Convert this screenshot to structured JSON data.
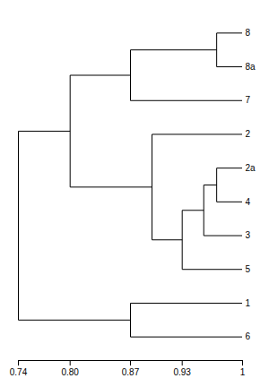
{
  "chart_data": {
    "type": "dendrogram",
    "categories": [
      "8",
      "8a",
      "7",
      "2",
      "2a",
      "4",
      "3",
      "5",
      "1",
      "6"
    ],
    "tree": {
      "value": 0.74,
      "children": [
        {
          "value": 0.8,
          "children": [
            {
              "value": 0.87,
              "children": [
                {
                  "value": 0.97,
                  "children": [
                    "8",
                    "8a"
                  ]
                },
                "7"
              ]
            },
            {
              "value": 0.895,
              "children": [
                "2",
                {
                  "value": 0.93,
                  "children": [
                    {
                      "value": 0.955,
                      "children": [
                        {
                          "value": 0.97,
                          "children": [
                            "2a",
                            "4"
                          ]
                        },
                        "3"
                      ]
                    },
                    "5"
                  ]
                }
              ]
            }
          ]
        },
        {
          "value": 0.87,
          "children": [
            "1",
            "6"
          ]
        }
      ]
    },
    "color": "black",
    "xlim": [
      0.74,
      1.0
    ],
    "xticks": [
      0.74,
      {
        "value": 0.8,
        "label": "0.80"
      },
      0.87,
      0.93,
      1
    ]
  }
}
